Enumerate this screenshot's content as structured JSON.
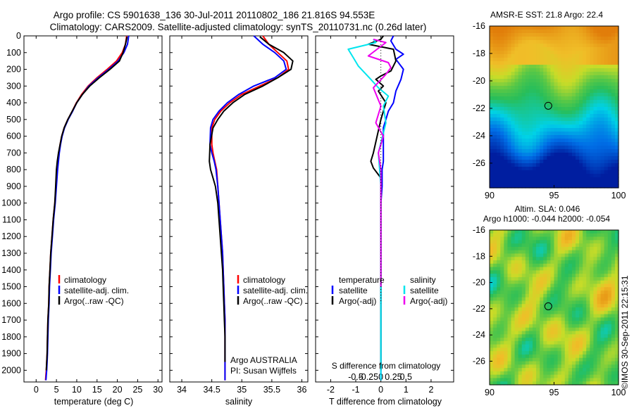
{
  "title_line1": "Argo profile: CS 5901638_136 30-Jul-2011 20110802_186 21.816S 94.553E",
  "title_line2": "Climatology: CARS2009. Satellite-adjusted climatology: synTS_20110731.nc (0.26d later)",
  "colors": {
    "climatology": "#ff0000",
    "satellite": "#0000ff",
    "argo": "#000000",
    "salinity_satellite": "#00e5ee",
    "salinity_argo": "#ee00ee"
  },
  "depth_axis": {
    "ticks": [
      "0",
      "100",
      "200",
      "300",
      "400",
      "500",
      "600",
      "700",
      "800",
      "900",
      "1000",
      "1100",
      "1200",
      "1300",
      "1400",
      "1500",
      "1600",
      "1700",
      "1800",
      "1900",
      "2000"
    ]
  },
  "panel_temperature": {
    "xlabel": "temperature (deg C)",
    "xticks": [
      "0",
      "5",
      "10",
      "15",
      "20",
      "25",
      "30"
    ],
    "legend": [
      "climatology",
      "satellite-adj. clim.",
      "Argo(..raw -QC)"
    ]
  },
  "panel_salinity": {
    "xlabel": "salinity",
    "xticks": [
      "34",
      "34.5",
      "35",
      "35.5",
      "36"
    ],
    "legend": [
      "climatology",
      "satellite-adj. clim.",
      "Argo(..raw -QC)"
    ],
    "note_line1": "Argo AUSTRALIA",
    "note_line2": "PI: Susan Wijffels"
  },
  "panel_difference": {
    "xlabel": "T difference from climatology",
    "toplabel": "S difference from climatology",
    "xticks_T": [
      "-2",
      "-1",
      "0",
      "1",
      "2"
    ],
    "xticks_S": [
      "-0.5",
      "-0.25",
      "0",
      "0.25",
      "0.5"
    ],
    "legend_temp_title": "temperature",
    "legend_temp": [
      "satellite",
      "Argo(-adj)"
    ],
    "legend_sal_title": "salinity",
    "legend_sal": [
      "satellite",
      "Argo(-adj)"
    ]
  },
  "map_sst": {
    "title": "AMSR-E SST: 21.8 Argo: 22.4",
    "yticks": [
      "-16",
      "-18",
      "-20",
      "-22",
      "-24",
      "-26"
    ],
    "xticks": [
      "90",
      "95",
      "100"
    ]
  },
  "map_sla": {
    "title_line1": "Altim. SLA: 0.046",
    "title_line2": "Argo h1000: -0.044 h2000: -0.054",
    "yticks": [
      "-16",
      "-18",
      "-20",
      "-22",
      "-24",
      "-26"
    ],
    "xticks": [
      "90",
      "95",
      "100"
    ]
  },
  "credit": "©IMOS 30-Sep-2011 22:15:31",
  "chart_data": [
    {
      "type": "line",
      "xlabel": "temperature (deg C)",
      "ylabel": "",
      "xlim": [
        -3,
        31
      ],
      "ylim": [
        2070,
        0
      ],
      "series": [
        {
          "name": "climatology",
          "x": [
            22.3,
            22.0,
            21.2,
            19.8,
            17.5,
            15.0,
            12.8,
            11.2,
            9.9,
            8.9,
            7.8,
            6.9,
            6.3,
            5.9,
            5.6,
            5.4,
            5.2,
            4.9,
            4.6,
            4.2,
            3.9,
            3.6,
            3.4,
            3.2,
            3.1,
            2.9,
            2.8,
            2.7,
            2.6,
            2.5,
            2.4,
            2.35,
            2.3
          ],
          "y": [
            0,
            50,
            100,
            150,
            200,
            250,
            300,
            350,
            400,
            450,
            500,
            550,
            600,
            650,
            700,
            750,
            800,
            900,
            1000,
            1100,
            1200,
            1300,
            1400,
            1500,
            1600,
            1700,
            1800,
            1900,
            1950,
            2000,
            2030,
            2050,
            2060
          ]
        },
        {
          "name": "satellite-adj. clim.",
          "x": [
            22.8,
            22.5,
            21.6,
            20.2,
            17.9,
            15.3,
            13.0,
            11.4,
            10.0,
            9.0,
            7.9,
            7.0,
            6.4,
            6.0,
            5.7,
            5.5,
            5.3,
            5.0,
            4.7,
            4.3,
            4.0,
            3.7,
            3.5,
            3.3,
            3.2,
            3.0,
            2.9,
            2.8,
            2.7,
            2.6,
            2.5,
            2.45,
            2.4
          ],
          "y": [
            0,
            50,
            100,
            150,
            200,
            250,
            300,
            350,
            400,
            450,
            500,
            550,
            600,
            650,
            700,
            750,
            800,
            900,
            1000,
            1100,
            1200,
            1300,
            1400,
            1500,
            1600,
            1700,
            1800,
            1900,
            1950,
            2000,
            2030,
            2050,
            2060
          ]
        },
        {
          "name": "Argo(..raw -QC)",
          "x": [
            22.4,
            22.0,
            21.4,
            20.5,
            18.2,
            15.6,
            13.2,
            11.4,
            10.0,
            8.9,
            7.8,
            6.9,
            6.3,
            5.9,
            5.5,
            5.2,
            5.0,
            4.8,
            4.6,
            4.2,
            3.9,
            3.6,
            3.4,
            3.2,
            3.1,
            2.9,
            2.8,
            2.7,
            2.6,
            2.5
          ],
          "y": [
            5,
            50,
            100,
            150,
            200,
            250,
            300,
            350,
            400,
            450,
            500,
            550,
            600,
            650,
            700,
            750,
            800,
            900,
            1000,
            1100,
            1200,
            1300,
            1400,
            1500,
            1600,
            1700,
            1800,
            1900,
            1950,
            2000
          ]
        }
      ]
    },
    {
      "type": "line",
      "xlabel": "salinity",
      "ylabel": "",
      "xlim": [
        33.8,
        36.1
      ],
      "ylim": [
        2070,
        0
      ],
      "series": [
        {
          "name": "climatology",
          "x": [
            35.35,
            35.45,
            35.6,
            35.75,
            35.78,
            35.6,
            35.3,
            35.0,
            34.8,
            34.65,
            34.55,
            34.5,
            34.5,
            34.52,
            34.55,
            34.58,
            34.6,
            34.62,
            34.64,
            34.66,
            34.68,
            34.69,
            34.7,
            34.71,
            34.72,
            34.72,
            34.72,
            34.72
          ],
          "y": [
            0,
            50,
            100,
            150,
            200,
            250,
            300,
            350,
            400,
            450,
            500,
            550,
            650,
            700,
            750,
            800,
            900,
            1000,
            1100,
            1200,
            1300,
            1400,
            1500,
            1600,
            1700,
            1800,
            1900,
            2060
          ]
        },
        {
          "name": "satellite-adj. clim.",
          "x": [
            35.2,
            35.35,
            35.55,
            35.7,
            35.74,
            35.55,
            35.2,
            34.95,
            34.76,
            34.62,
            34.52,
            34.48,
            34.47,
            34.5,
            34.54,
            34.57,
            34.6,
            34.62,
            34.64,
            34.66,
            34.68,
            34.69,
            34.7,
            34.71,
            34.72,
            34.72,
            34.72,
            34.72
          ],
          "y": [
            0,
            50,
            100,
            150,
            200,
            250,
            300,
            350,
            400,
            450,
            500,
            550,
            650,
            700,
            750,
            800,
            900,
            1000,
            1100,
            1200,
            1300,
            1400,
            1500,
            1600,
            1700,
            1800,
            1900,
            2060
          ]
        },
        {
          "name": "Argo(..raw -QC)",
          "x": [
            35.3,
            35.45,
            35.7,
            35.85,
            35.82,
            35.6,
            35.35,
            35.05,
            34.85,
            34.7,
            34.6,
            34.52,
            34.47,
            34.46,
            34.48,
            34.52,
            34.56,
            34.6,
            34.62,
            34.64,
            34.66,
            34.68,
            34.69,
            34.7,
            34.71,
            34.72,
            34.72
          ],
          "y": [
            5,
            50,
            100,
            150,
            200,
            250,
            300,
            350,
            400,
            450,
            500,
            550,
            650,
            750,
            800,
            850,
            900,
            1000,
            1100,
            1200,
            1300,
            1400,
            1500,
            1600,
            1700,
            1800,
            1950
          ]
        }
      ]
    },
    {
      "type": "line",
      "xlabel": "T difference from climatology",
      "ylabel": "",
      "xlim": [
        -2.6,
        2.9
      ],
      "ylim": [
        2070,
        0
      ],
      "series": [
        {
          "name": "satellite",
          "x": [
            0.5,
            0.4,
            0.6,
            0.9,
            0.6,
            0.9,
            0.8,
            0.6,
            0.5,
            0.3,
            0.2,
            0.1,
            0.1,
            0.1,
            0.05,
            0.05,
            0.0,
            0.0,
            0.0,
            0.0,
            0.0,
            0.0,
            0.0,
            0.0,
            0.0
          ],
          "y": [
            0,
            30,
            80,
            110,
            140,
            200,
            260,
            330,
            400,
            450,
            500,
            550,
            650,
            750,
            800,
            900,
            1000,
            1100,
            1200,
            1400,
            1600,
            1800,
            1900,
            2000,
            2060
          ]
        },
        {
          "name": "Argo(-adj)",
          "x": [
            0.1,
            0.0,
            -0.5,
            0.5,
            0.6,
            0.4,
            0.0,
            -0.2,
            0.1,
            -0.1,
            0.2,
            0.0,
            -0.3,
            -0.4,
            -0.3,
            0.0,
            0.0,
            0.0,
            0.0,
            0.0,
            0.0,
            0.0,
            0.0
          ],
          "y": [
            0,
            20,
            50,
            80,
            150,
            210,
            240,
            260,
            300,
            330,
            400,
            500,
            700,
            750,
            790,
            850,
            1000,
            1200,
            1300,
            1500,
            1700,
            1900,
            2000
          ]
        },
        {
          "name": "satellite (salinity)",
          "x": [
            -0.3,
            -0.2,
            -1.3,
            -1.1,
            -0.9,
            -0.4,
            -0.1,
            0.3,
            0.1,
            0.2,
            -0.1,
            0.0,
            0.0,
            0.0,
            0.0,
            0.0
          ],
          "y": [
            20,
            40,
            80,
            130,
            180,
            260,
            310,
            360,
            420,
            520,
            700,
            900,
            1100,
            1400,
            1700,
            2060
          ]
        },
        {
          "name": "Argo(-adj) (salinity)",
          "x": [
            -0.3,
            0.2,
            -0.5,
            0.3,
            0.4,
            0.2,
            -0.3,
            0.0,
            -0.2,
            0.1,
            -0.1,
            0.0,
            0.0,
            0.0,
            0.0
          ],
          "y": [
            20,
            40,
            120,
            160,
            190,
            230,
            310,
            420,
            520,
            600,
            700,
            800,
            1000,
            1300,
            1500
          ]
        }
      ]
    }
  ]
}
